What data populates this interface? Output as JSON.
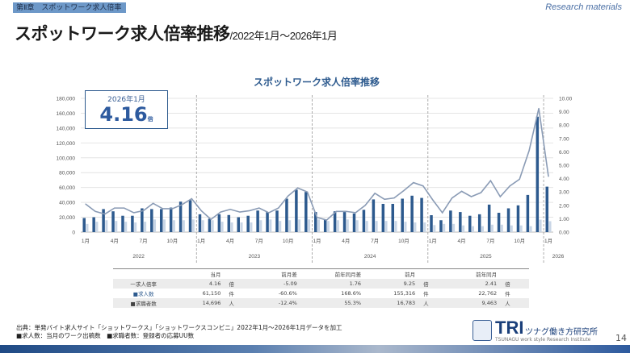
{
  "header": {
    "chapter": "第Ⅱ章　スポットワーク求人倍率",
    "research": "Research materials",
    "title": "スポットワーク求人倍率推移",
    "title_suffix": "/2022年1月～2026年1月"
  },
  "kpi": {
    "date": "2026年1月",
    "value": "4.16",
    "unit": "倍"
  },
  "chart_data": {
    "type": "bar+line",
    "title": "スポットワーク求人倍率推移",
    "x_month_labels": [
      "1月",
      "4月",
      "7月",
      "10月"
    ],
    "years": [
      "2022",
      "2023",
      "2024",
      "2025",
      "2026"
    ],
    "ylim_left": [
      0,
      180000
    ],
    "ylim_right": [
      0,
      10
    ],
    "left_ticks": [
      "0",
      "20,000",
      "40,000",
      "60,000",
      "80,000",
      "100,000",
      "120,000",
      "140,000",
      "160,000",
      "180,000"
    ],
    "right_ticks": [
      "0.00",
      "1.00",
      "2.00",
      "3.00",
      "4.00",
      "5.00",
      "6.00",
      "7.00",
      "8.00",
      "9.00",
      "10.00"
    ],
    "grid": true,
    "colors": {
      "jobs": "#2d5a8e",
      "applicants": "#c9d6e6",
      "ratio": "#8a9bb5"
    },
    "series": [
      {
        "name": "求人数",
        "type": "bar",
        "values": [
          19000,
          20000,
          31000,
          28000,
          22000,
          22000,
          32000,
          31000,
          31000,
          33000,
          41000,
          43000,
          24000,
          18000,
          24000,
          23000,
          20000,
          22000,
          29000,
          27000,
          29000,
          45000,
          57000,
          54000,
          27000,
          17000,
          28000,
          27000,
          25000,
          30000,
          44000,
          38000,
          38000,
          45000,
          49000,
          46000,
          22762,
          16000,
          29000,
          27000,
          22000,
          24000,
          37000,
          26000,
          32000,
          36000,
          50000,
          155316,
          61150
        ]
      },
      {
        "name": "求職者数",
        "type": "bar",
        "values": [
          11000,
          14000,
          16000,
          15000,
          14000,
          13000,
          14000,
          17000,
          17000,
          16000,
          16000,
          17000,
          16000,
          16000,
          14000,
          13000,
          13000,
          13000,
          16000,
          17000,
          15000,
          16000,
          17000,
          17000,
          17000,
          15000,
          16000,
          17000,
          16000,
          15000,
          15000,
          15000,
          15000,
          14000,
          13000,
          13000,
          9463,
          11000,
          11000,
          9000,
          8000,
          8000,
          10000,
          10000,
          9000,
          9000,
          8000,
          16783,
          14696
        ]
      },
      {
        "name": "求人倍率",
        "type": "line",
        "values": [
          2.1,
          1.55,
          1.35,
          1.8,
          1.8,
          1.45,
          1.6,
          2.15,
          1.75,
          1.75,
          2.05,
          2.5,
          1.6,
          0.95,
          1.5,
          1.7,
          1.5,
          1.6,
          1.8,
          1.45,
          1.8,
          2.7,
          3.3,
          3.0,
          1.1,
          0.9,
          1.55,
          1.55,
          1.45,
          2.0,
          2.9,
          2.45,
          2.55,
          3.1,
          3.7,
          3.45,
          2.41,
          1.45,
          2.55,
          3.05,
          2.65,
          2.95,
          3.85,
          2.65,
          3.45,
          3.95,
          6.1,
          9.25,
          4.16
        ]
      }
    ]
  },
  "table": {
    "headers": [
      "",
      "当月",
      "",
      "前月差",
      "前年同月差",
      "前月",
      "",
      "前年同月",
      ""
    ],
    "rows": [
      {
        "label": "一求人倍率",
        "cur": "4.16",
        "u1": "倍",
        "mom": "-5.09",
        "yoy": "1.76",
        "prev": "9.25",
        "u2": "倍",
        "ly": "2.41",
        "u3": "倍"
      },
      {
        "label": "■求人数",
        "cur": "61,150",
        "u1": "件",
        "mom": "-60.6%",
        "yoy": "168.6%",
        "prev": "155,316",
        "u2": "件",
        "ly": "22,762",
        "u3": "件"
      },
      {
        "label": "■求職者数",
        "cur": "14,696",
        "u1": "人",
        "mom": "-12.4%",
        "yoy": "55.3%",
        "prev": "16,783",
        "u2": "人",
        "ly": "9,463",
        "u3": "人"
      }
    ]
  },
  "footer": {
    "source": "出典：単発バイト求人サイト「ショットワークス」「ショットワークスコンビニ」2022年1月～2026年1月データを加工",
    "note": "■求人数：当月のワーク出稿数　■求職者数：登録者の応募UU数"
  },
  "logo": {
    "tri": "TRI",
    "jp": "ツナグ働き方研究所",
    "en": "TSUNAGU work style Research Institute"
  },
  "page": "14"
}
